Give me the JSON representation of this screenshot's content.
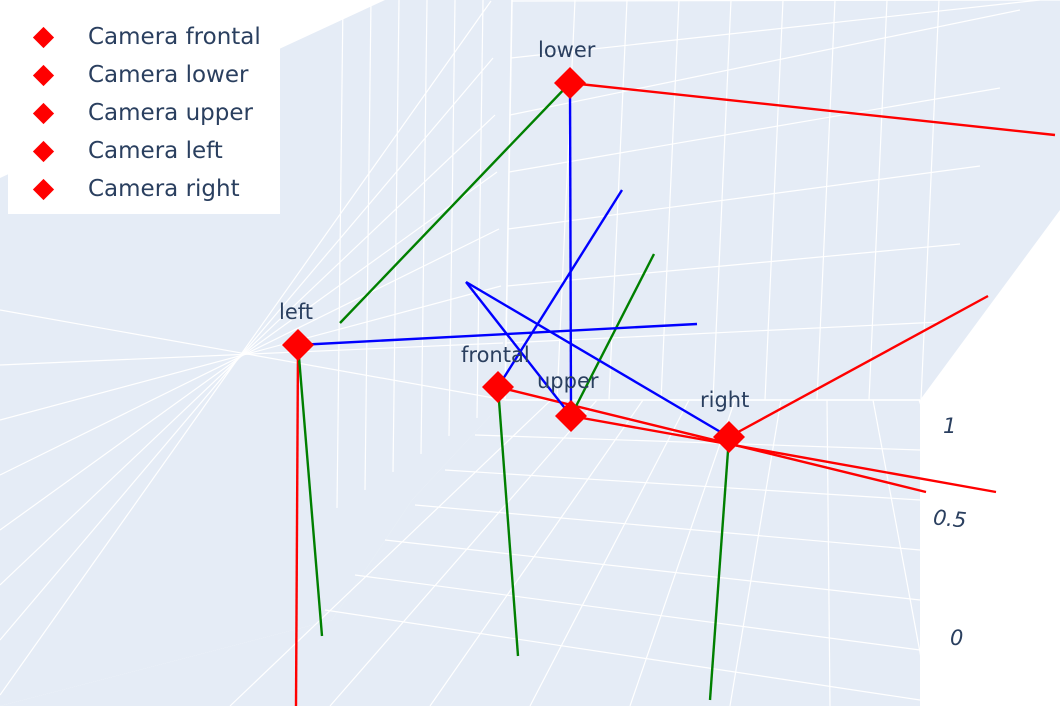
{
  "chart_data": {
    "type": "scatter3d",
    "title": "",
    "legend": {
      "placement": "top-left",
      "entries": [
        {
          "name": "Camera frontal",
          "color": "#ff0000",
          "marker": "diamond"
        },
        {
          "name": "Camera lower",
          "color": "#ff0000",
          "marker": "diamond"
        },
        {
          "name": "Camera upper",
          "color": "#ff0000",
          "marker": "diamond"
        },
        {
          "name": "Camera left",
          "color": "#ff0000",
          "marker": "diamond"
        },
        {
          "name": "Camera right",
          "color": "#ff0000",
          "marker": "diamond"
        }
      ]
    },
    "series": [
      {
        "name": "Camera frontal",
        "label": "frontal"
      },
      {
        "name": "Camera lower",
        "label": "lower"
      },
      {
        "name": "Camera upper",
        "label": "upper"
      },
      {
        "name": "Camera left",
        "label": "left"
      },
      {
        "name": "Camera right",
        "label": "right"
      }
    ],
    "axis_colors": {
      "x": "#ff0000",
      "y": "#008000",
      "z": "#0000ff"
    },
    "z_axis": {
      "tick_labels": [
        "1",
        "0.5",
        "0"
      ],
      "range": [
        0,
        1
      ]
    },
    "background_color": "#e5ecf6",
    "grid": true
  }
}
